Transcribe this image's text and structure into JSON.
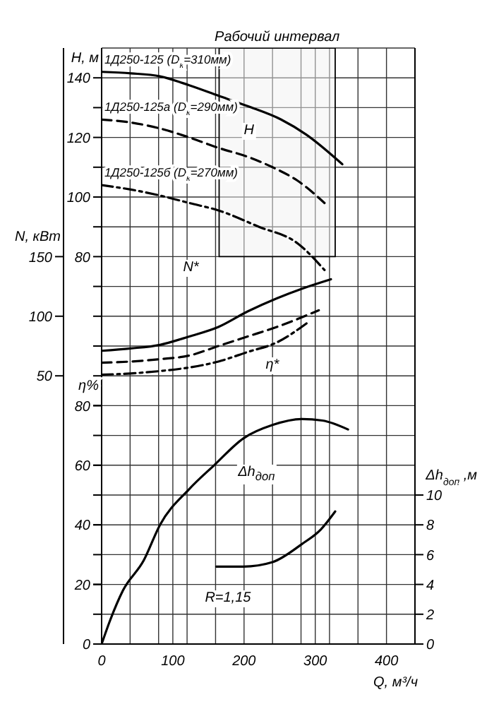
{
  "chart_data": [
    {
      "type": "line",
      "ylabel": "H, м",
      "y2label": "N, кВт",
      "xlim": [
        0,
        440
      ],
      "xticks": [
        0,
        {
          "value": 40,
          "label": null
        },
        {
          "value": 80,
          "label": null
        },
        100,
        {
          "value": 120,
          "label": null
        },
        {
          "value": 160,
          "label": null
        },
        200,
        {
          "value": 240,
          "label": null
        },
        {
          "value": 280,
          "label": null
        },
        300,
        {
          "value": 320,
          "label": null
        },
        {
          "value": 360,
          "label": null
        },
        400
      ],
      "ylim": [
        -50,
        150
      ],
      "yticks": [
        {
          "value": -40,
          "label": null
        },
        {
          "value": -30,
          "label": null
        },
        {
          "value": -20,
          "label": null
        },
        {
          "value": -10,
          "label": null
        },
        {
          "value": 0,
          "label": null
        },
        {
          "value": 10,
          "label": null
        },
        {
          "value": 20,
          "label": null
        },
        {
          "value": 30,
          "label": null
        },
        {
          "value": 40,
          "label": null
        },
        {
          "value": 50,
          "label": null
        },
        {
          "value": 60,
          "label": null
        },
        {
          "value": 70,
          "label": null
        },
        80,
        {
          "value": 90,
          "label": null
        },
        100,
        {
          "value": 110,
          "label": null
        },
        120,
        {
          "value": 130,
          "label": null
        },
        140
      ],
      "y2lim": [
        -175,
        325
      ],
      "y2ticks": [
        50,
        100,
        150
      ],
      "grid": true,
      "tick_labels": "y",
      "marker": "none",
      "series": [
        {
          "name": "1Д250-125 (D$_{к}$=310мм)",
          "color": "#000000",
          "line_style": "solid",
          "x": [
            0,
            41,
            82,
            123,
            164,
            205,
            252,
            287,
            338
          ],
          "values": [
            142,
            141.5,
            140.5,
            137.5,
            134,
            130.5,
            126,
            121,
            111
          ]
        },
        {
          "name": "1Д250-125а (D$_{к}$=290мм)",
          "color": "#000000",
          "line_style": "dashed",
          "x": [
            0,
            41,
            82,
            123,
            164,
            205,
            240,
            275,
            313
          ],
          "values": [
            126,
            125,
            123,
            120,
            116.5,
            113.5,
            110,
            105.5,
            98
          ]
        },
        {
          "name": "1Д250-125б (D$_{к}$=270мм)",
          "color": "#000000",
          "line_style": "dotted",
          "x": [
            0,
            41,
            82,
            123,
            164,
            221,
            275,
            313
          ],
          "values": [
            104,
            102.5,
            100.5,
            98,
            95.5,
            90,
            84.5,
            75.5
          ]
        },
        {
          "color": "#000000",
          "line_style": "solid",
          "axis": "y2",
          "x": [
            0,
            41,
            82,
            123,
            164,
            205,
            246,
            281,
            322
          ],
          "values": [
            71,
            73,
            76,
            83,
            91,
            104,
            115,
            123,
            131
          ]
        },
        {
          "color": "#000000",
          "line_style": "dashed",
          "axis": "y2",
          "x": [
            0,
            41,
            82,
            123,
            164,
            205,
            246,
            305
          ],
          "values": [
            61,
            62,
            64,
            67,
            75,
            83,
            91,
            105
          ]
        },
        {
          "color": "#000000",
          "line_style": "dotted",
          "axis": "y2",
          "x": [
            0,
            41,
            82,
            123,
            164,
            205,
            246,
            290
          ],
          "values": [
            51,
            52,
            54,
            57,
            62,
            70,
            78,
            95
          ]
        }
      ],
      "bands": [
        {
          "axis": "x",
          "from": 165,
          "to": 328,
          "label": "Рабочий интервал",
          "color": "#f2f2f2"
        }
      ],
      "annotations": [
        "H",
        "N*"
      ]
    },
    {
      "type": "line",
      "xlabel": "Q, м³/ч",
      "ylabel": "η%",
      "y2label": "Δh$_{доп}$ ,м",
      "xlim": [
        0,
        440
      ],
      "xticks": [
        0,
        100,
        200,
        300,
        400
      ],
      "ylim": [
        0,
        200
      ],
      "yticks": [
        0,
        20,
        40,
        60,
        80
      ],
      "y2lim": [
        0,
        40
      ],
      "y2ticks": [
        0,
        2,
        4,
        6,
        8,
        10
      ],
      "marker": "none",
      "series": [
        {
          "color": "#000000",
          "line_style": "solid",
          "x": [
            0,
            12,
            30,
            59,
            82,
            123,
            158,
            199,
            240,
            281,
            310,
            346
          ],
          "values": [
            0,
            8,
            18,
            28,
            40,
            52,
            60,
            69,
            73.5,
            75.5,
            75,
            72
          ]
        },
        {
          "color": "#000000",
          "line_style": "solid",
          "axis": "y2",
          "x": [
            161,
            199,
            240,
            281,
            308,
            328
          ],
          "values": [
            5.2,
            5.2,
            5.5,
            6.7,
            7.7,
            8.9
          ]
        }
      ],
      "annotations": [
        "η*",
        "Δh$_{доп}$",
        "R=1,15"
      ]
    }
  ]
}
